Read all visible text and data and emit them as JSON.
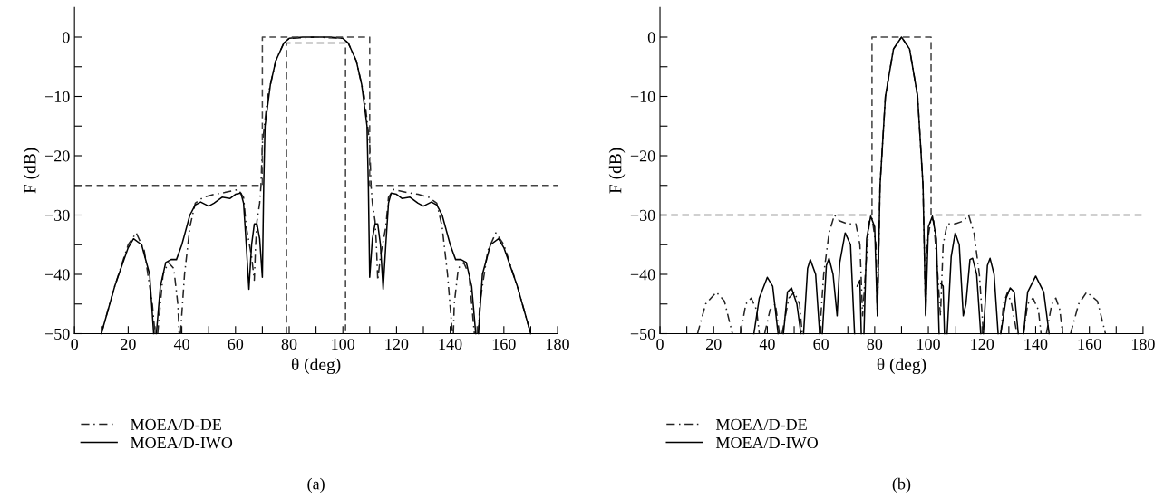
{
  "chart_data": [
    {
      "type": "line",
      "title": "(a)",
      "xlabel": "θ (deg)",
      "ylabel": "F (dB)",
      "xlim": [
        0,
        180
      ],
      "ylim": [
        -50,
        5
      ],
      "xticks": [
        0,
        {
          "value": 10,
          "label": null
        },
        20,
        {
          "value": 30,
          "label": null
        },
        40,
        {
          "value": 50,
          "label": null
        },
        60,
        {
          "value": 70,
          "label": null
        },
        80,
        {
          "value": 90,
          "label": null
        },
        100,
        {
          "value": 110,
          "label": null
        },
        120,
        {
          "value": 130,
          "label": null
        },
        140,
        {
          "value": 150,
          "label": null
        },
        160,
        {
          "value": 170,
          "label": null
        },
        180
      ],
      "yticks": [
        {
          "value": -50,
          "label": "−50"
        },
        {
          "value": -45,
          "label": null
        },
        {
          "value": -40,
          "label": "−40"
        },
        {
          "value": -35,
          "label": null
        },
        {
          "value": -30,
          "label": "−30"
        },
        {
          "value": -25,
          "label": null
        },
        {
          "value": -20,
          "label": "−20"
        },
        {
          "value": -15,
          "label": null
        },
        {
          "value": -10,
          "label": "−10"
        },
        {
          "value": -5,
          "label": null
        },
        0
      ],
      "grid": false,
      "legend": "bottom left",
      "series": [
        {
          "name": "MOEA/D-DE",
          "color": "#222222",
          "line_style": "dashdot",
          "x": [
            10,
            15,
            20,
            23,
            26,
            29,
            30,
            30.5,
            31,
            33,
            35,
            37,
            38.5,
            39,
            39.2,
            39.5,
            41,
            43,
            45,
            48,
            52,
            56,
            61,
            63,
            64,
            66,
            67,
            67.5,
            68,
            69,
            69.5,
            70,
            72,
            75,
            78,
            80,
            90,
            100,
            102,
            105,
            108,
            110,
            110.5,
            111,
            112,
            112.5,
            113,
            114,
            116,
            117,
            119,
            124,
            128,
            132,
            135,
            137,
            139,
            140.8,
            141,
            141.2,
            141.5,
            143,
            145,
            147,
            149,
            150,
            150.5,
            151,
            154,
            157,
            160,
            165,
            170
          ],
          "values": [
            -50,
            -42,
            -35,
            -33,
            -36,
            -45,
            -50,
            null,
            -50,
            -40,
            -38,
            -39,
            -45,
            -50,
            null,
            -50,
            -40,
            -32,
            -28,
            -27,
            -26.5,
            -26.2,
            -25.7,
            -27,
            -32,
            -37,
            -41,
            -35,
            -31,
            -28,
            -25,
            -18,
            -10,
            -4,
            -1,
            -0.2,
            0,
            -0.2,
            -1,
            -4,
            -10,
            -18,
            -25,
            -28,
            -31,
            -35,
            -41,
            -37,
            -32,
            -27,
            -25.7,
            -26.2,
            -26.5,
            -27,
            -28,
            -32,
            -40,
            -50,
            null,
            -50,
            -45,
            -39,
            -38,
            -40,
            -50,
            null,
            -50,
            -45,
            -36,
            -33,
            -35,
            -42,
            -50
          ]
        },
        {
          "name": "MOEA/D-IWO",
          "color": "#000000",
          "line_style": "solid",
          "x": [
            10,
            15,
            20,
            22,
            25,
            28,
            29.5,
            30,
            30.5,
            32,
            34,
            36,
            38,
            40,
            43,
            45,
            47,
            50,
            52,
            55,
            58,
            60,
            62,
            63,
            64,
            65,
            66,
            67,
            68,
            69,
            70,
            70.5,
            71,
            73,
            75,
            78,
            80,
            85,
            90,
            95,
            100,
            102,
            105,
            107,
            109,
            109.5,
            110,
            111,
            112,
            113,
            114,
            115,
            116,
            117,
            118,
            120,
            122,
            125,
            128,
            130,
            133,
            135,
            137,
            140,
            142,
            144,
            146,
            148,
            149.5,
            150,
            150.5,
            152,
            155,
            158,
            160,
            165,
            170
          ],
          "values": [
            -50,
            -42,
            -35.5,
            -34,
            -35,
            -40,
            -50,
            null,
            -50,
            -42,
            -38,
            -37.5,
            -37.5,
            -35,
            -30,
            -28.3,
            -27.8,
            -28.5,
            -28,
            -27,
            -27.2,
            -26.5,
            -26.3,
            -28,
            -35,
            -42.5,
            -35,
            -31.5,
            -31.5,
            -34,
            -40.5,
            -25,
            -15,
            -8,
            -4,
            -1,
            -0.2,
            0,
            0,
            0,
            -0.2,
            -1,
            -4,
            -8,
            -15,
            -25,
            -40.5,
            -34,
            -31.5,
            -31.5,
            -35,
            -42.5,
            -35,
            -28,
            -26.3,
            -26.5,
            -27.2,
            -27,
            -28,
            -28.5,
            -27.8,
            -28.3,
            -30,
            -35,
            -37.5,
            -37.5,
            -38,
            -42,
            -50,
            null,
            -50,
            -40,
            -35,
            -34,
            -35.5,
            -42,
            -50
          ]
        },
        {
          "color": "#444444",
          "line_style": "dashed",
          "x": [
            0,
            70,
            70,
            110,
            110,
            180
          ],
          "values": [
            -25,
            -25,
            0,
            0,
            -25,
            -25
          ]
        },
        {
          "color": "#444444",
          "line_style": "dashed",
          "x": [
            79,
            79,
            101,
            101
          ],
          "values": [
            -50,
            -1,
            -1,
            -50
          ]
        }
      ]
    },
    {
      "type": "line",
      "title": "(b)",
      "xlabel": "θ (deg)",
      "ylabel": "F (dB)",
      "xlim": [
        0,
        180
      ],
      "ylim": [
        -50,
        5
      ],
      "xticks": [
        0,
        {
          "value": 10,
          "label": null
        },
        20,
        {
          "value": 30,
          "label": null
        },
        40,
        {
          "value": 50,
          "label": null
        },
        60,
        {
          "value": 70,
          "label": null
        },
        80,
        {
          "value": 90,
          "label": null
        },
        100,
        {
          "value": 110,
          "label": null
        },
        120,
        {
          "value": 130,
          "label": null
        },
        140,
        {
          "value": 150,
          "label": null
        },
        160,
        {
          "value": 170,
          "label": null
        },
        180
      ],
      "yticks": [
        {
          "value": -50,
          "label": "−50"
        },
        {
          "value": -45,
          "label": null
        },
        {
          "value": -40,
          "label": "−40"
        },
        {
          "value": -35,
          "label": null
        },
        {
          "value": -30,
          "label": "−30"
        },
        {
          "value": -25,
          "label": null
        },
        {
          "value": -20,
          "label": "−20"
        },
        {
          "value": -15,
          "label": null
        },
        {
          "value": -10,
          "label": "−10"
        },
        {
          "value": -5,
          "label": null
        },
        0
      ],
      "grid": false,
      "legend": "bottom left",
      "series": [
        {
          "name": "MOEA/D-DE",
          "color": "#222222",
          "line_style": "dashdot",
          "x": [
            14,
            17,
            21,
            24,
            27,
            28,
            30,
            32,
            34,
            36,
            37,
            38,
            39,
            41,
            43,
            44.5,
            45,
            45.5,
            48,
            50,
            52,
            53,
            56,
            59.5,
            61,
            63,
            65,
            67,
            70,
            73,
            74.5,
            75.5,
            76.5,
            78,
            79,
            80.5,
            81,
            82,
            84,
            87,
            90,
            93,
            96,
            98,
            99,
            99.5,
            101,
            102,
            103.5,
            104.5,
            105.5,
            107,
            110,
            113,
            115,
            117,
            119,
            120.5,
            124,
            127,
            128,
            129.5,
            131,
            133,
            134,
            135.5,
            137,
            139,
            141,
            142,
            143,
            144,
            146,
            147.5,
            149,
            150,
            151,
            153,
            156,
            159,
            163,
            166
          ],
          "values": [
            -50,
            -45,
            -43,
            -44.5,
            -50,
            null,
            -50,
            -45,
            -44,
            -46,
            -50,
            null,
            -50,
            -46,
            -45,
            -50,
            null,
            -50,
            -44,
            -43,
            -45,
            -50,
            null,
            -50,
            -40,
            -33,
            -30,
            -31,
            -31.5,
            -31.5,
            -35,
            -47,
            -40,
            -31,
            -30.5,
            -35,
            -47,
            -25,
            -10,
            -2,
            0,
            -2,
            -10,
            -25,
            -47,
            -35,
            -30.5,
            -31,
            -40,
            -47,
            -35,
            -31.5,
            -31.5,
            -31,
            -30,
            -33,
            -40,
            -50,
            null,
            -50,
            -45,
            -43,
            -45,
            -50,
            null,
            -50,
            -45,
            -44,
            -46,
            -50,
            null,
            -50,
            -45,
            -44,
            -46,
            -50,
            null,
            -50,
            -45,
            -43,
            -44.5,
            -50
          ]
        },
        {
          "name": "MOEA/D-IWO",
          "color": "#000000",
          "line_style": "solid",
          "x": [
            35,
            37,
            40,
            42,
            44,
            45,
            46,
            47.5,
            49,
            51,
            52.5,
            53,
            53.5,
            55,
            56,
            58,
            59.5,
            60,
            60.5,
            62,
            63,
            64.5,
            66,
            67,
            69,
            71,
            72.5,
            73,
            73.5,
            74.5,
            75,
            75.5,
            76,
            77,
            78.5,
            80,
            81,
            82,
            84,
            87,
            90,
            93,
            96,
            98,
            99,
            100,
            101.5,
            103,
            104,
            104.2,
            104.5,
            105.5,
            106,
            106.5,
            107,
            108.5,
            110,
            111.5,
            113,
            114,
            115.5,
            116.5,
            118,
            119.5,
            120,
            120.5,
            122,
            123,
            124.5,
            126,
            126.5,
            127,
            129,
            130.5,
            132,
            133.5,
            134.5,
            135.5,
            137,
            140,
            143,
            145
          ],
          "values": [
            -50,
            -44,
            -40.5,
            -42,
            -50,
            null,
            -50,
            -43,
            -42.3,
            -45,
            -50,
            null,
            -50,
            -39,
            -37.5,
            -40,
            -50,
            null,
            -50,
            -38.5,
            -37.3,
            -40,
            -47,
            -38,
            -33,
            -35,
            -50,
            null,
            -42,
            -41,
            -50,
            null,
            -50,
            -34,
            -30.2,
            -32,
            -47,
            -25,
            -10,
            -2,
            0,
            -2,
            -10,
            -25,
            -47,
            -32,
            -30.2,
            -34,
            -50,
            null,
            -41.5,
            -42,
            -50,
            null,
            -50,
            -37,
            -33,
            -35,
            -47,
            -45,
            -37.5,
            -37.3,
            -40,
            -50,
            null,
            -50,
            -38.5,
            -37.3,
            -40,
            -50,
            null,
            -50,
            -44,
            -42.3,
            -43,
            -50,
            null,
            -50,
            -43,
            -40.3,
            -43,
            -50
          ]
        },
        {
          "color": "#444444",
          "line_style": "dashed",
          "x": [
            0,
            79,
            79,
            101,
            101,
            180
          ],
          "values": [
            -30,
            -30,
            0,
            0,
            -30,
            -30
          ]
        }
      ]
    }
  ]
}
